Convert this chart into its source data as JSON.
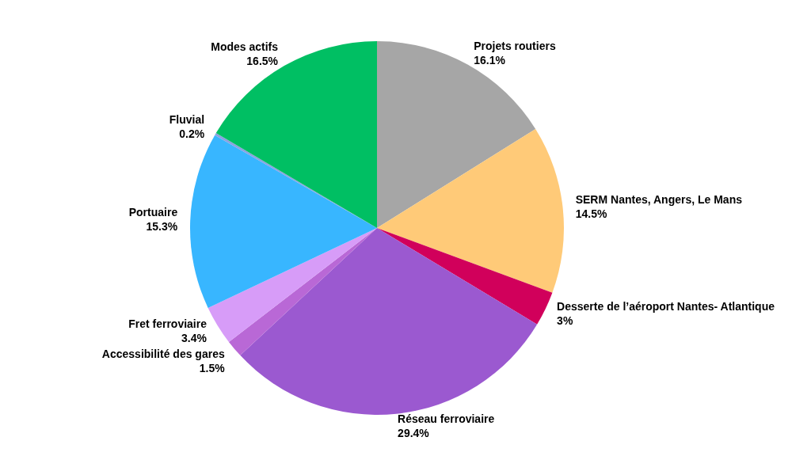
{
  "chart_data": {
    "type": "pie",
    "categories": [
      "Projets routiers",
      "SERM Nantes, Angers, Le Mans",
      "Desserte de l’aéroport Nantes- Atlantique",
      "Réseau ferroviaire",
      "Accessibilité des gares",
      "Fret ferroviaire",
      "Portuaire",
      "Fluvial",
      "Modes actifs"
    ],
    "values": [
      16.1,
      14.5,
      3,
      29.4,
      1.5,
      3.4,
      15.3,
      0.2,
      16.5
    ],
    "colors": [
      "#a6a6a6",
      "#ffca78",
      "#d1005b",
      "#9b59d0",
      "#b968d6",
      "#d79cf8",
      "#38b6ff",
      "#8aa2e0",
      "#00bf63"
    ],
    "value_labels": [
      "16.1%",
      "14.5%",
      "3%",
      "29.4%",
      "1.5%",
      "3.4%",
      "15.3%",
      "0.2%",
      "16.5%"
    ],
    "legend": false
  }
}
